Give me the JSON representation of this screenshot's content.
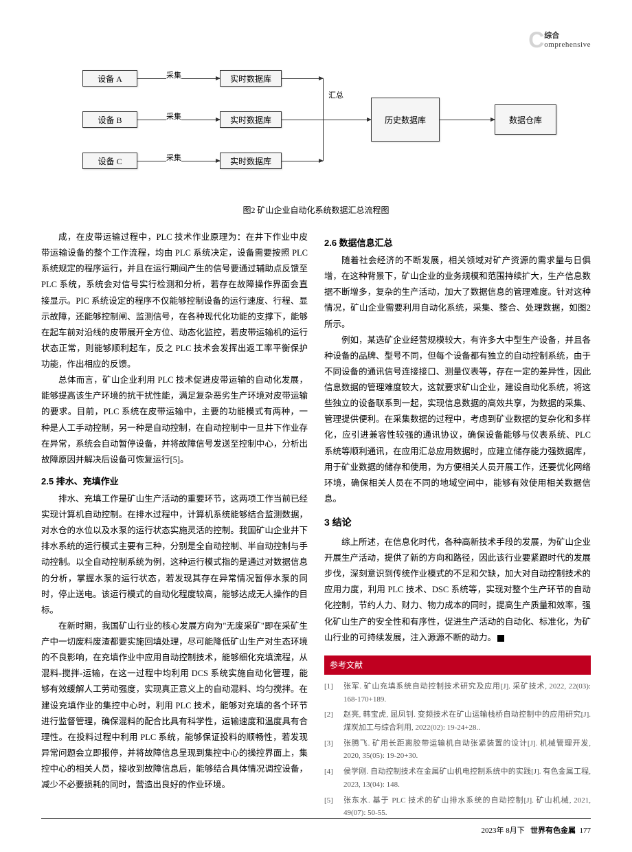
{
  "header": {
    "cn": "综合",
    "en": "omprehensive",
    "c": "C"
  },
  "flowchart": {
    "caption": "图2  矿山企业自动化系统数据汇总流程图",
    "boxes": {
      "devA": "设备 A",
      "devB": "设备 B",
      "devC": "设备 C",
      "rt1": "实时数据库",
      "rt2": "实时数据库",
      "rt3": "实时数据库",
      "hist": "历史数据库",
      "dw": "数据仓库"
    },
    "labels": {
      "collect": "采集",
      "summary": "汇总"
    }
  },
  "left": {
    "p1": "成，在皮带运输过程中，PLC 技术作业原理为：在井下作业中皮带运输设备的整个工作流程，均由 PLC 系统决定，设备需要按照 PLC 系统规定的程序运行，并且在运行期间产生的信号要通过辅助点反馈至 PLC 系统，系统会对信号实行检测和分析，若存在故障操作界面会直接显示。PIC 系统设定的程序不仅能够控制设备的运行速度、行程、显示故障，还能够控制闸、监测信号，在各种现代化功能的支撑下，能够在起车前对沿线的皮带展开全方位、动态化监控，若皮带运输机的运行状态正常，则能够顺利起车，反之 PLC 技术会发挥出返工率平衡保护功能，作出相应的反馈。",
    "p2": "总体而言，矿山企业利用 PLC 技术促进皮带运输的自动化发展，能够提高该生产环境的抗干扰性能，满足复杂恶劣生产环境对皮带运输的要求。目前，PLC 系统在皮带运输中，主要的功能模式有两种，一种是人工手动控制，另一种是自动控制，在自动控制中一旦井下作业存在异常，系统会自动暂停设备，并将故障信号发送至控制中心，分析出故障原因并解决后设备可恢复运行[5]。",
    "s25_title": "2.5  排水、充填作业",
    "p3": "排水、充填工作是矿山生产活动的重要环节，这两项工作当前已经实现计算机自动控制。在排水过程中，计算机系统能够结合监测数据，对水仓的水位以及水泵的运行状态实施灵活的控制。我国矿山企业井下排水系统的运行模式主要有三种，分别是全自动控制、半自动控制与手动控制。以全自动控制系统为例，这种运行模式指的是通过对数据信息的分析，掌握水泵的运行状态，若发现其存在异常情况暂停水泵的同时，停止送电。该运行模式的自动化程度较高，能够达成无人操作的目标。",
    "p4": "在新时期，我国矿山行业的核心发展方向为\"无废采矿\"即在采矿生产中一切废料废渣都要实施回填处理，尽可能降低矿山生产对生态环境的不良影响，在充填作业中应用自动控制技术，能够细化充填流程，从混料-搅拌-运输，在这一过程中均利用 DCS 系统实施自动化管理，能够有效缓解人工劳动强度，实现真正意义上的自动混料、均匀搅拌。在建设充填作业的集控中心时，利用 PLC 技术，能够对充填的各个环节进行监督管理，确保混料的配合比具有科学性，运输速度和温度具有合理性。在投料过程中利用 PLC 系统，能够保证投料的顺畅性，若发现异常问题会立即报停，并将故障信息呈现到集控中心的操控界面上，集控中心的相关人员，接收到故障信息后，能够结合具体情况调控设备，减少不必要损耗的同时，营造出良好的作业环境。"
  },
  "right": {
    "s26_title": "2.6  数据信息汇总",
    "p5": "随着社会经济的不断发展，相关领域对矿产资源的需求量与日俱增，在这种背景下，矿山企业的业务规模和范围持续扩大，生产信息数据不断增多，复杂的生产活动，加大了数据信息的管理难度。针对这种情况，矿山企业需要利用自动化系统，采集、整合、处理数据，如图2所示。",
    "p6": "例如，某选矿企业经营规模较大，有许多大中型生产设备，并且各种设备的品牌、型号不同，但每个设备都有独立的自动控制系统，由于不同设备的通讯信号连接接口、测量仪表等，存在一定的差异性，因此信息数据的管理难度较大，这就要求矿山企业，建设自动化系统，将这些独立的设备联系到一起，实现信息数据的高效共享，为数据的采集、管理提供便利。在采集数据的过程中，考虑到矿业数据的复杂化和多样化，应引进兼容性较强的通讯协议，确保设备能够与仪表系统、PLC 系统等顺利通讯，在应用汇总应用数据时，应建立储存能力强数据库，用于矿业数据的储存和使用，为方便相关人员开展工作，还要优化网络环境，确保相关人员在不同的地域空间中，能够有效使用相关数据信息。",
    "s3_title": "3  结论",
    "p7": "综上所述，在信息化时代，各种高新技术手段的发展，为矿山企业开展生产活动，提供了新的方向和路径，因此该行业要紧跟时代的发展步伐，深刻意识到传统作业模式的不足和欠缺，加大对自动控制技术的应用力度，利用 PLC 技术、DSC 系统等，实现对整个生产环节的自动化控制，节约人力、财力、物力成本的同时，提高生产质量和效率，强化矿山生产的安全性和有序性，促进生产活动的自动化、标准化，为矿山行业的可持续发展，注入源源不断的动力。"
  },
  "refs_title": "参考文献",
  "refs": [
    "张军. 矿山充填系统自动控制技术研究及应用[J]. 采矿技术, 2022, 22(03): 168-170+189.",
    "赵亮, 韩宝虎, 屈凤钊. 变频技术在矿山运输栈桥自动控制中的应用研究[J]. 煤炭加工与综合利用, 2022(02): 19-24+28..",
    "张腾飞. 矿用长距离胶带运输机自动张紧装置的设计[J]. 机械管理开发, 2020, 35(05): 19-20+30.",
    "侯学刚. 自动控制技术在金属矿山机电控制系统中的实践[J]. 有色金属工程, 2023, 13(04): 148.",
    "张东水. 基于 PLC 技术的矿山排水系统的自动控制[J]. 矿山机械, 2021, 49(07): 50-55."
  ],
  "footer": {
    "date": "2023年 8月下",
    "mag": "世界有色金属",
    "page": "177"
  }
}
